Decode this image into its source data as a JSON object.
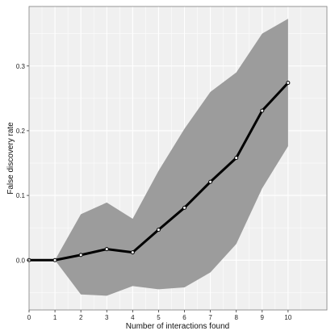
{
  "chart_data": {
    "type": "line",
    "xlabel": "Number of interactions found",
    "ylabel": "False discovery rate",
    "xlim": [
      0,
      11.5
    ],
    "ylim": [
      -0.077,
      0.392
    ],
    "x_ticks": [
      0,
      1,
      2,
      3,
      4,
      5,
      6,
      7,
      8,
      9,
      10
    ],
    "y_ticks": [
      0.0,
      0.1,
      0.2,
      0.3
    ],
    "y_tick_labels": [
      "0.0",
      "0.1",
      "0.2",
      "0.3"
    ],
    "x_tick_labels": [
      "0",
      "1",
      "2",
      "3",
      "4",
      "5",
      "6",
      "7",
      "8",
      "9",
      "10"
    ],
    "grid": true,
    "series": [
      {
        "x": [
          0,
          1,
          2,
          3,
          4,
          5,
          6,
          7,
          8,
          9,
          10
        ],
        "values": [
          0.0,
          0.0,
          0.008,
          0.017,
          0.012,
          0.047,
          0.081,
          0.121,
          0.158,
          0.231,
          0.274
        ],
        "lower": [
          0.0,
          0.0,
          -0.053,
          -0.055,
          -0.04,
          -0.045,
          -0.042,
          -0.019,
          0.025,
          0.111,
          0.176
        ],
        "upper": [
          0.0,
          0.0,
          0.071,
          0.089,
          0.064,
          0.138,
          0.203,
          0.26,
          0.29,
          0.35,
          0.373
        ]
      }
    ],
    "colors": {
      "panel": "#f0f0f0",
      "grid": "#ffffff",
      "band": "#9c9c9c",
      "line": "#000000",
      "marker_fill": "#ffffff",
      "frame": "#7f7f7f"
    }
  }
}
